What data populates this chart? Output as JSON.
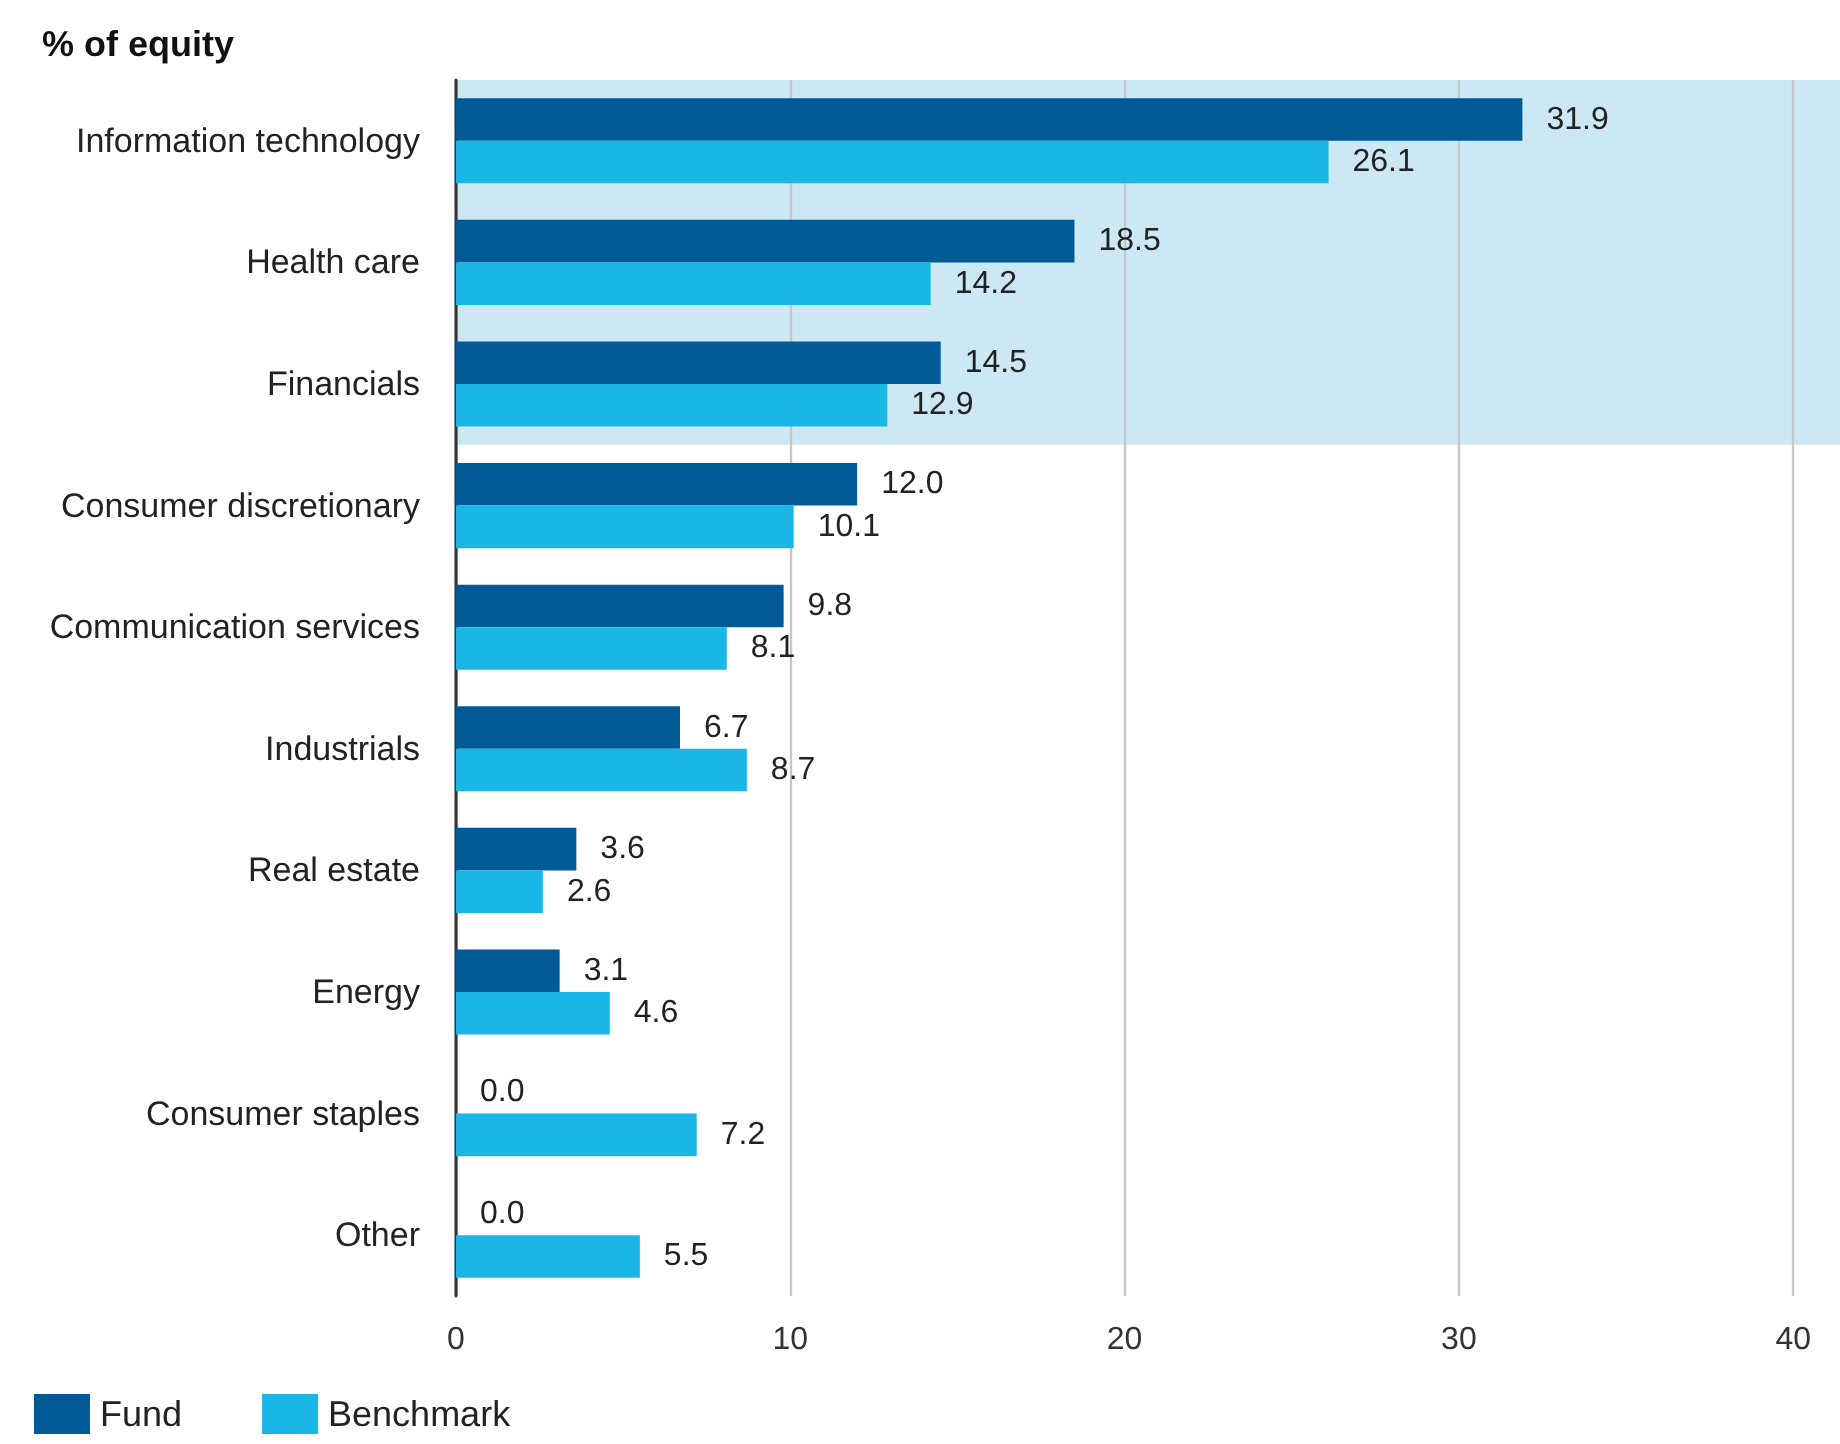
{
  "chart_data": {
    "type": "bar",
    "orientation": "horizontal",
    "title": "% of equity",
    "categories": [
      "Information technology",
      "Health care",
      "Financials",
      "Consumer discretionary",
      "Communication services",
      "Industrials",
      "Real estate",
      "Energy",
      "Consumer staples",
      "Other"
    ],
    "series": [
      {
        "name": "Fund",
        "color": "#005a96",
        "values": [
          31.9,
          18.5,
          14.5,
          12.0,
          9.8,
          6.7,
          3.6,
          3.1,
          0.0,
          0.0
        ],
        "value_labels": [
          "31.9",
          "18.5",
          "14.5",
          "12.0",
          "9.8",
          "6.7",
          "3.6",
          "3.1",
          "0.0",
          "0.0"
        ]
      },
      {
        "name": "Benchmark",
        "color": "#1ab7e6",
        "values": [
          26.1,
          14.2,
          12.9,
          10.1,
          8.1,
          8.7,
          2.6,
          4.6,
          7.2,
          5.5
        ],
        "value_labels": [
          "26.1",
          "14.2",
          "12.9",
          "10.1",
          "8.1",
          "8.7",
          "2.6",
          "4.6",
          "7.2",
          "5.5"
        ]
      }
    ],
    "xlim": [
      0,
      41.4
    ],
    "xticks": [
      0,
      10,
      20,
      30,
      40
    ],
    "grid": "x",
    "legend": "bottom left",
    "bands": [
      {
        "axis": "y",
        "from": "Information technology",
        "to": "Financials",
        "color": "#cce8f5"
      }
    ]
  }
}
